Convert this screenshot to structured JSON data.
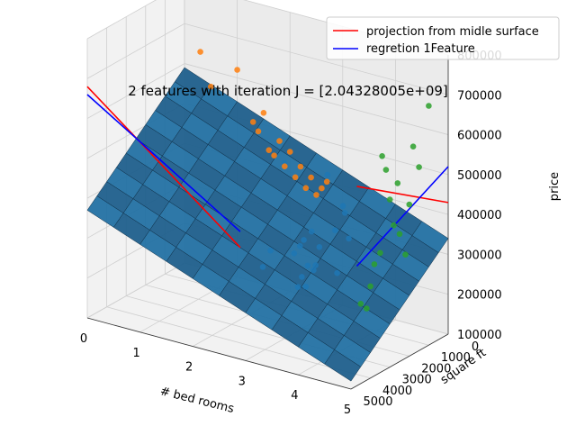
{
  "chart_data": {
    "type": "scatter",
    "view": "3d",
    "title": "2 features with iteration J = [2.04328005e+09]",
    "xlabel": "# bed rooms",
    "ylabel": "square ft",
    "zlabel": "price",
    "xlim": [
      0,
      5
    ],
    "ylim": [
      0,
      5000
    ],
    "zlim": [
      100000,
      800000
    ],
    "x_ticks": [
      "0",
      "1",
      "2",
      "3",
      "4",
      "5"
    ],
    "y_ticks": [
      "0",
      "1000",
      "2000",
      "3000",
      "4000",
      "5000"
    ],
    "z_ticks": [
      "100000",
      "200000",
      "300000",
      "400000",
      "500000",
      "600000",
      "700000",
      "800000"
    ],
    "legend_position": "top-right",
    "colors": {
      "red_line": "#ff0000",
      "blue_line": "#0000ff",
      "scatter_blue": "#1f77b4",
      "scatter_orange": "#ff7f0e",
      "scatter_green": "#2ca02c",
      "surface": "#1f77b4"
    },
    "series": [
      {
        "name": "projection from midle surface",
        "kind": "line",
        "color": "#ff0000"
      },
      {
        "name": "regretion 1Feature",
        "kind": "line",
        "color": "#0000ff"
      }
    ],
    "surface": {
      "corner_values": [
        {
          "x": 0,
          "y": 0,
          "z": 590000
        },
        {
          "x": 5,
          "y": 0,
          "z": 340000
        },
        {
          "x": 5,
          "y": 5000,
          "z": 120000
        },
        {
          "x": 0,
          "y": 5000,
          "z": 370000
        }
      ]
    },
    "scatter_sets": [
      {
        "color": "#1f77b4",
        "projection": "data points",
        "points": [
          [
            3,
            2000,
            320000
          ],
          [
            3,
            1600,
            330000
          ],
          [
            4,
            2400,
            370000
          ],
          [
            3,
            1400,
            240000
          ],
          [
            3,
            3000,
            540000
          ],
          [
            4,
            3000,
            300000
          ],
          [
            3,
            2200,
            310000
          ],
          [
            3,
            1500,
            230000
          ],
          [
            2,
            1400,
            200000
          ],
          [
            4,
            3500,
            560000
          ],
          [
            4,
            3100,
            410000
          ],
          [
            3,
            1900,
            200000
          ],
          [
            3,
            2500,
            300000
          ],
          [
            3,
            2100,
            230000
          ],
          [
            4,
            2600,
            440000
          ],
          [
            3,
            1200,
            280000
          ],
          [
            2,
            1000,
            230000
          ],
          [
            3,
            2300,
            210000
          ],
          [
            4,
            2700,
            460000
          ],
          [
            3,
            1800,
            250000
          ]
        ]
      },
      {
        "color": "#ff7f0e",
        "projection": "bedroom-price wall",
        "points": [
          [
            0.3,
            0,
            640000
          ],
          [
            0.5,
            0,
            560000
          ],
          [
            1.0,
            0,
            620000
          ],
          [
            1.3,
            0,
            500000
          ],
          [
            1.5,
            0,
            530000
          ],
          [
            1.8,
            0,
            470000
          ],
          [
            2.0,
            0,
            450000
          ],
          [
            2.2,
            0,
            420000
          ],
          [
            2.4,
            0,
            400000
          ],
          [
            2.6,
            0,
            380000
          ],
          [
            1.6,
            0,
            440000
          ],
          [
            1.9,
            0,
            410000
          ],
          [
            2.1,
            0,
            390000
          ],
          [
            2.3,
            0,
            370000
          ],
          [
            1.4,
            0,
            480000
          ],
          [
            1.7,
            0,
            430000
          ],
          [
            2.5,
            0,
            360000
          ],
          [
            2.7,
            0,
            400000
          ]
        ]
      },
      {
        "color": "#2ca02c",
        "projection": "sqft-price wall",
        "points": [
          [
            5,
            1000,
            700000
          ],
          [
            5,
            1500,
            560000
          ],
          [
            5,
            2000,
            480000
          ],
          [
            5,
            2500,
            420000
          ],
          [
            5,
            3000,
            520000
          ],
          [
            5,
            3500,
            400000
          ],
          [
            5,
            4000,
            330000
          ],
          [
            5,
            4500,
            300000
          ],
          [
            5,
            1800,
            620000
          ],
          [
            5,
            2200,
            360000
          ],
          [
            5,
            2800,
            450000
          ],
          [
            5,
            3200,
            600000
          ],
          [
            5,
            3800,
            380000
          ],
          [
            5,
            4200,
            280000
          ],
          [
            5,
            2600,
            550000
          ],
          [
            5,
            3400,
            640000
          ]
        ]
      }
    ]
  }
}
